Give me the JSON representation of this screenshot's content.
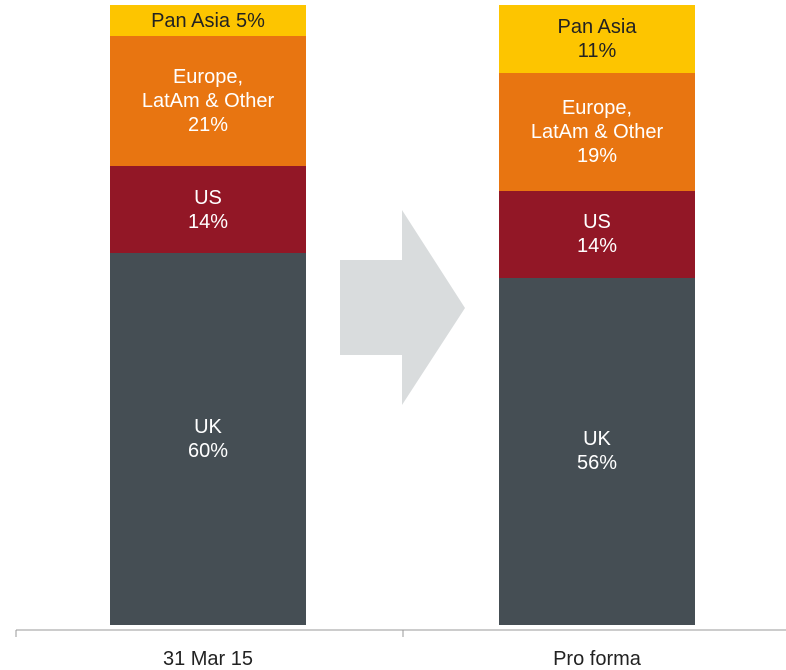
{
  "chart_data": {
    "type": "stacked_bar",
    "categories": [
      "31 Mar 15",
      "Pro forma"
    ],
    "series": [
      {
        "name": "UK",
        "color": "#454e54",
        "values": [
          60,
          56
        ],
        "value_labels": [
          "60%",
          "56%"
        ]
      },
      {
        "name": "US",
        "color": "#921726",
        "values": [
          14,
          14
        ],
        "value_labels": [
          "14%",
          "14%"
        ]
      },
      {
        "name": "Europe,\nLatAm & Other",
        "color": "#e87511",
        "values": [
          21,
          19
        ],
        "value_labels": [
          "21%",
          "19%"
        ]
      },
      {
        "name": "Pan Asia",
        "color": "#fdc500",
        "values": [
          5,
          11
        ],
        "value_labels": [
          "5%",
          "11%"
        ]
      }
    ],
    "ylim": [
      0,
      100
    ]
  }
}
